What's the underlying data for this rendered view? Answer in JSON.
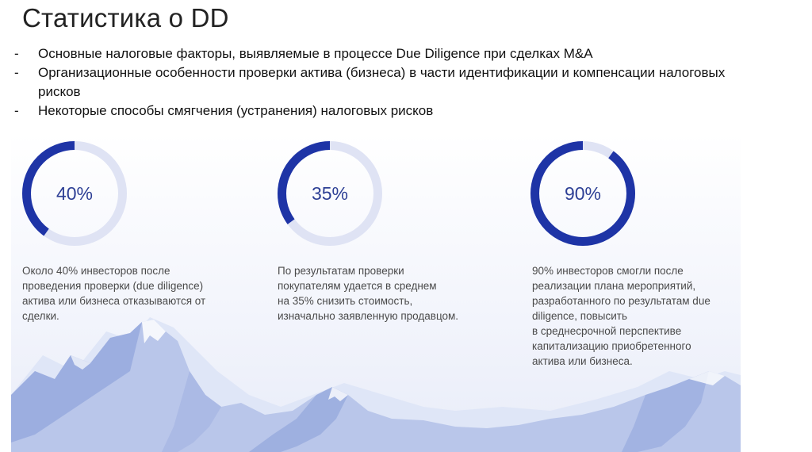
{
  "slide": {
    "title": "Статистика о DD",
    "bullets": [
      "Основные налоговые факторы, выявляемые в процессе Due Diligence при сделках M&A",
      "Организационные особенности проверки актива (бизнеса) в части идентификации и компенсации налоговых рисков",
      "Некоторые способы смягчения (устранения) налоговых рисков"
    ],
    "bullet_marker": "-"
  },
  "stats": [
    {
      "value_label": "40%",
      "fraction": 0.4,
      "description": "Около 40% инвесторов после\nпроведения проверки (due diligence)\nактива или бизнеса отказываются от\nсделки."
    },
    {
      "value_label": "35%",
      "fraction": 0.35,
      "description": "По результатам проверки\nпокупателям удается в среднем\nна 35% снизить стоимость,\nизначально заявленную продавцом."
    },
    {
      "value_label": "90%",
      "fraction": 0.9,
      "description": "90% инвесторов смогли после\nреализации плана мероприятий,\nразработанного по результатам due\ndiligence, повысить\nв среднесрочной перспективе\nкапитализацию приобретенного\nактива или бизнеса."
    }
  ],
  "colors": {
    "ring_fill": "#1e34a6",
    "ring_track": "#dfe3f4",
    "ring_text": "#2d3f95",
    "mountain_light": "#dfe6f7",
    "mountain_mid": "#b9c6ea",
    "mountain_dark": "#93a6dc"
  }
}
